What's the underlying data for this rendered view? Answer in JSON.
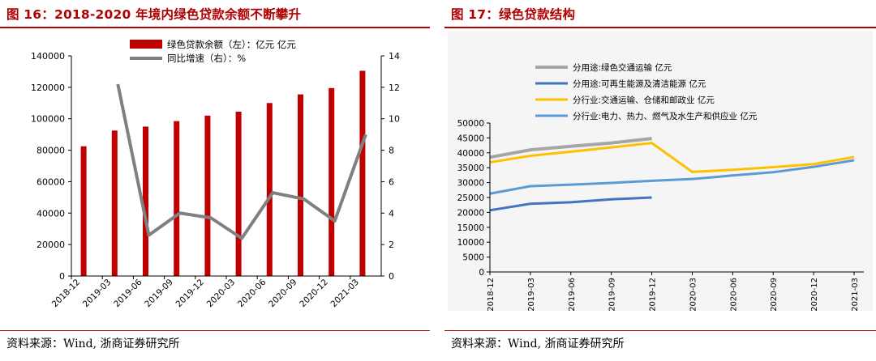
{
  "figures": [
    {
      "title": "图 16：2018-2020 年境内绿色贷款余额不断攀升",
      "source": "资料来源：Wind, 浙商证券研究所"
    },
    {
      "title": "图 17：绿色贷款结构",
      "source": "资料来源：Wind, 浙商证券研究所"
    }
  ],
  "colors": {
    "accent": "#b00000",
    "bar": "#c00000",
    "gray_line": "#808080"
  },
  "chart_data": [
    {
      "type": "bar",
      "title": "2018-2020 年境内绿色贷款余额不断攀升",
      "categories": [
        "2018-12",
        "2019-03",
        "2019-06",
        "2019-09",
        "2019-12",
        "2020-03",
        "2020-06",
        "2020-09",
        "2020-12",
        "2021-03"
      ],
      "series": [
        {
          "name": "绿色贷款余额（左）：亿元 亿元",
          "axis": "left",
          "chart": "bar",
          "color": "#c00000",
          "values": [
            82500,
            92500,
            95000,
            98500,
            102000,
            104500,
            110000,
            115500,
            119500,
            130500
          ]
        },
        {
          "name": "同比增速（右）：%",
          "axis": "right",
          "chart": "line",
          "color": "#808080",
          "values": [
            null,
            12.2,
            2.6,
            4.0,
            3.7,
            2.4,
            5.3,
            4.9,
            3.5,
            9.0
          ]
        }
      ],
      "y_left": {
        "min": 0,
        "max": 140000,
        "ticks": [
          "0",
          "20000",
          "40000",
          "60000",
          "80000",
          "100000",
          "120000",
          "140000"
        ]
      },
      "y_right": {
        "min": 0,
        "max": 14,
        "ticks": [
          "0",
          "2",
          "4",
          "6",
          "8",
          "10",
          "12",
          "14"
        ]
      }
    },
    {
      "type": "line",
      "title": "绿色贷款结构",
      "categories": [
        "2018-12",
        "2019-03",
        "2019-06",
        "2019-09",
        "2019-12",
        "2020-03",
        "2020-06",
        "2020-09",
        "2020-12",
        "2021-03"
      ],
      "series": [
        {
          "name": "分用途:绿色交通运输 亿元",
          "color": "#a6a6a6",
          "values": [
            38500,
            41000,
            42200,
            43300,
            44800,
            null,
            null,
            null,
            null,
            null
          ]
        },
        {
          "name": "分用途:可再生能源及清洁能源 亿元",
          "color": "#4472c4",
          "values": [
            20700,
            22900,
            23400,
            24400,
            25000,
            null,
            null,
            null,
            null,
            null
          ]
        },
        {
          "name": "分行业:交通运输、仓储和邮政业 亿元",
          "color": "#ffc000",
          "values": [
            36800,
            39000,
            40400,
            41800,
            43300,
            33600,
            34300,
            35200,
            36200,
            38600
          ]
        },
        {
          "name": "分行业:电力、热力、燃气及水生产和供应业 亿元",
          "color": "#5b9bd5",
          "values": [
            26300,
            28800,
            29300,
            29900,
            30600,
            31200,
            32400,
            33500,
            35300,
            37500
          ]
        }
      ],
      "y": {
        "min": 0,
        "max": 50000,
        "ticks": [
          "0",
          "5000",
          "10000",
          "15000",
          "20000",
          "25000",
          "30000",
          "35000",
          "40000",
          "45000",
          "50000"
        ]
      }
    }
  ]
}
